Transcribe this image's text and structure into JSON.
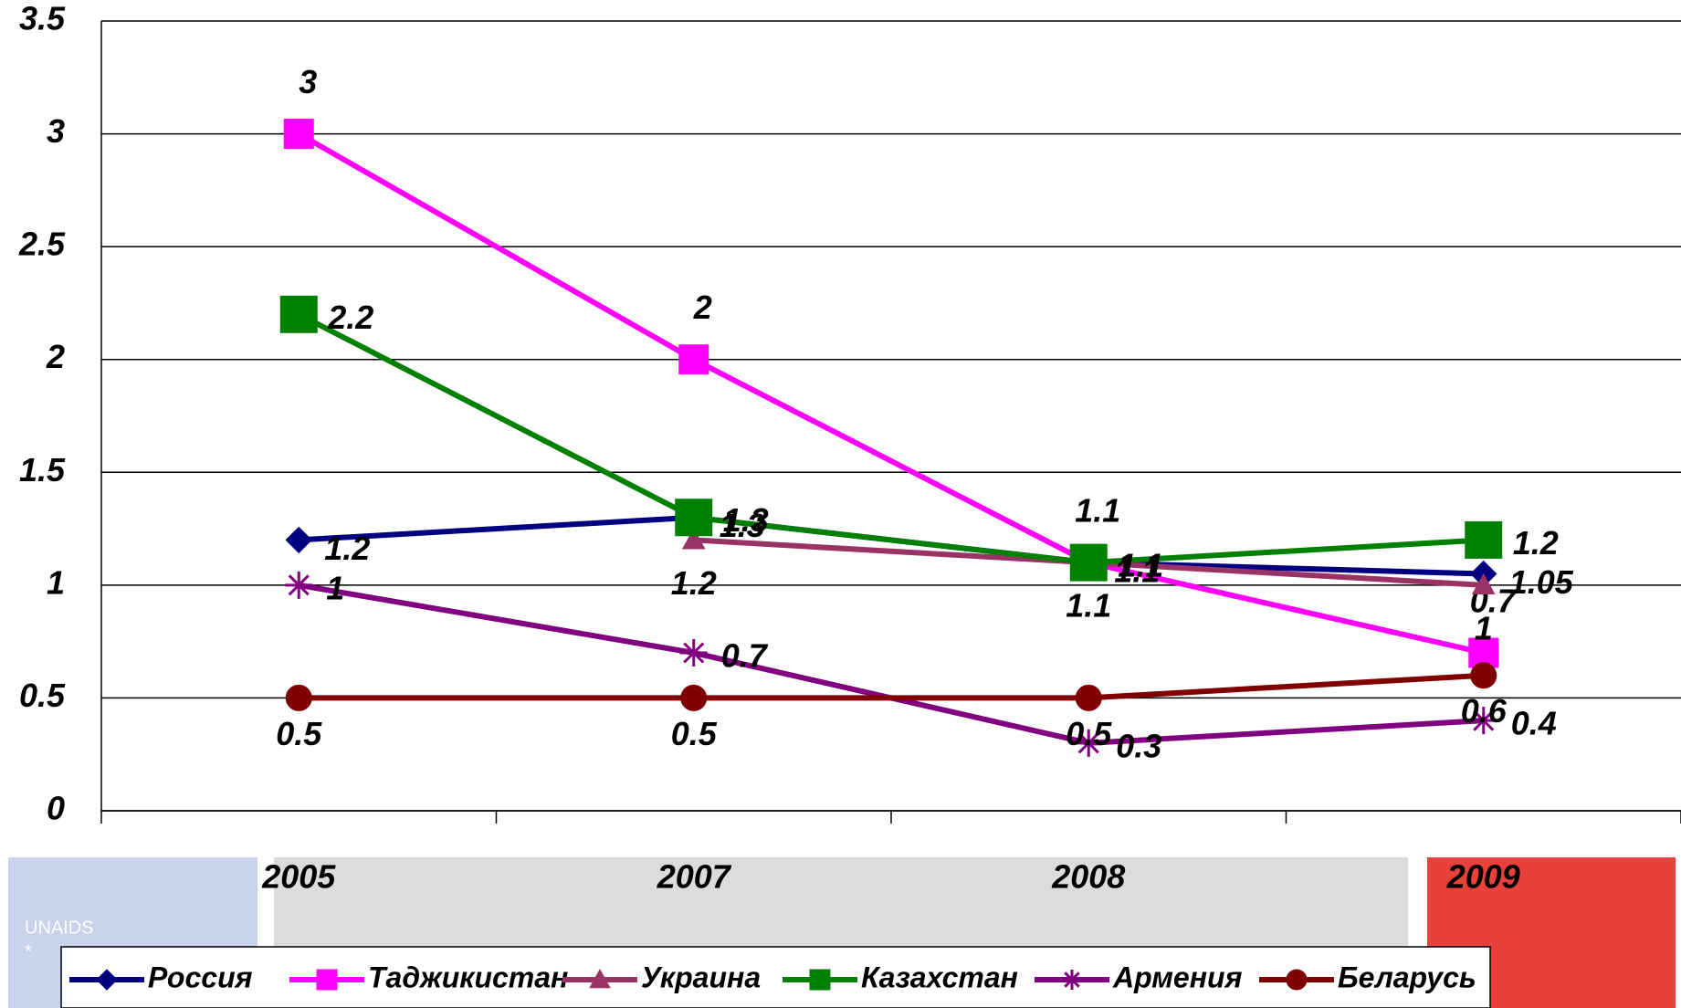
{
  "chart_data": {
    "type": "line",
    "categories": [
      "2005",
      "2007",
      "2008",
      "2009"
    ],
    "series": [
      {
        "name": "Россия",
        "color": "#000080",
        "marker": "diamond",
        "values": [
          1.2,
          1.3,
          1.1,
          1.05
        ]
      },
      {
        "name": "Таджикистан",
        "color": "#ff00ff",
        "marker": "square",
        "values": [
          3,
          2,
          1.1,
          0.7
        ]
      },
      {
        "name": "Украина",
        "color": "#993366",
        "marker": "triangle",
        "values": [
          null,
          1.2,
          1.1,
          1
        ]
      },
      {
        "name": "Казахстан",
        "color": "#008000",
        "marker": "square",
        "values": [
          2.2,
          1.3,
          1.1,
          1.2
        ]
      },
      {
        "name": "Армения",
        "color": "#800080",
        "marker": "asterisk",
        "values": [
          1,
          0.7,
          0.3,
          0.4
        ]
      },
      {
        "name": "Беларусь",
        "color": "#800000",
        "marker": "circle",
        "values": [
          0.5,
          0.5,
          0.5,
          0.6
        ]
      }
    ],
    "ylim": [
      0,
      3.5
    ],
    "yticks": [
      0,
      0.5,
      1,
      1.5,
      2,
      2.5,
      3,
      3.5
    ],
    "grid": true,
    "legend": "bottom",
    "annotations": [
      "UNAIDS",
      "*"
    ]
  }
}
